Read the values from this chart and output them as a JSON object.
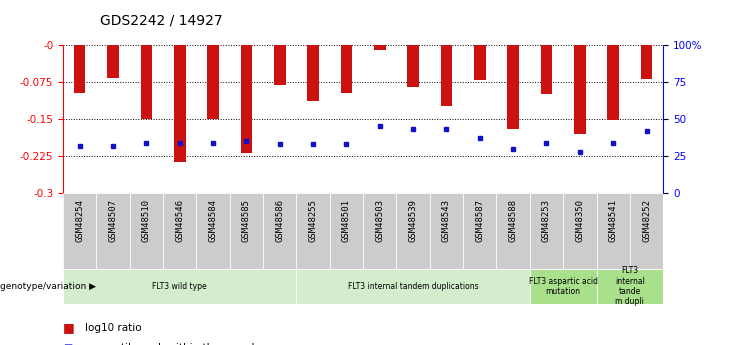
{
  "title": "GDS2242 / 14927",
  "samples": [
    "GSM48254",
    "GSM48507",
    "GSM48510",
    "GSM48546",
    "GSM48584",
    "GSM48585",
    "GSM48586",
    "GSM48255",
    "GSM48501",
    "GSM48503",
    "GSM48539",
    "GSM48543",
    "GSM48587",
    "GSM48588",
    "GSM48253",
    "GSM48350",
    "GSM48541",
    "GSM48252"
  ],
  "log10_ratio": [
    -0.098,
    -0.068,
    -0.15,
    -0.237,
    -0.15,
    -0.218,
    -0.082,
    -0.113,
    -0.097,
    -0.01,
    -0.085,
    -0.123,
    -0.072,
    -0.17,
    -0.1,
    -0.18,
    -0.152,
    -0.07
  ],
  "percentile_rank": [
    32,
    32,
    34,
    34,
    34,
    35,
    33,
    33,
    33,
    45,
    43,
    43,
    37,
    30,
    34,
    28,
    34,
    42
  ],
  "bar_color": "#cc1111",
  "dot_color": "#1111cc",
  "ylim_left": [
    -0.3,
    0.0
  ],
  "ylim_right": [
    0,
    100
  ],
  "yticks_left": [
    0.0,
    -0.075,
    -0.15,
    -0.225,
    -0.3
  ],
  "yticks_right": [
    0,
    25,
    50,
    75,
    100
  ],
  "groups": [
    {
      "label": "FLT3 wild type",
      "start": 0,
      "end": 6,
      "color": "#d4edcc"
    },
    {
      "label": "FLT3 internal tandem duplications",
      "start": 7,
      "end": 13,
      "color": "#d4edcc"
    },
    {
      "label": "FLT3 aspartic acid\nmutation",
      "start": 14,
      "end": 15,
      "color": "#a8e08c"
    },
    {
      "label": "FLT3\ninternal\ntande\nm dupli",
      "start": 16,
      "end": 17,
      "color": "#a8e08c"
    }
  ],
  "bar_width": 0.35,
  "background_color": "#ffffff",
  "tick_bg_color": "#cccccc"
}
